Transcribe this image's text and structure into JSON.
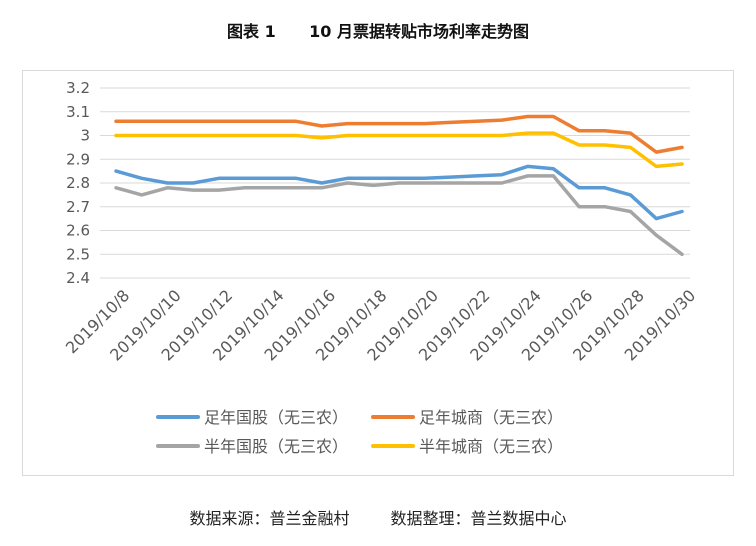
{
  "title": "图表 1      10 月票据转贴市场利率走势图",
  "source_left": "数据来源：普兰金融村",
  "source_right": "数据整理：普兰数据中心",
  "colors": {
    "series": [
      "#5b9bd5",
      "#ed7d31",
      "#a5a5a5",
      "#ffc000"
    ],
    "grid": "#d9d9d9",
    "axis_text": "#595959"
  },
  "chart_data": {
    "type": "line",
    "title": "",
    "xlabel": "",
    "ylabel": "",
    "ylim": [
      2.4,
      3.2
    ],
    "yticks": [
      2.4,
      2.5,
      2.6,
      2.7,
      2.8,
      2.9,
      3,
      3.1,
      3.2
    ],
    "grid": "horizontal",
    "legend_position": "bottom",
    "x_tick_labels": [
      "2019/10/8",
      "2019/10/10",
      "2019/10/12",
      "2019/10/14",
      "2019/10/16",
      "2019/10/18",
      "2019/10/20",
      "2019/10/22",
      "2019/10/24",
      "2019/10/26",
      "2019/10/28",
      "2019/10/30"
    ],
    "x": [
      "2019/10/8",
      "2019/10/9",
      "2019/10/10",
      "2019/10/11",
      "2019/10/12",
      "2019/10/13",
      "2019/10/14",
      "2019/10/15",
      "2019/10/16",
      "2019/10/17",
      "2019/10/18",
      "2019/10/19",
      "2019/10/20",
      "2019/10/21",
      "2019/10/22",
      "2019/10/23",
      "2019/10/24",
      "2019/10/25",
      "2019/10/26",
      "2019/10/27",
      "2019/10/28",
      "2019/10/29",
      "2019/10/30"
    ],
    "series": [
      {
        "name": "足年国股（无三农）",
        "values": [
          2.85,
          2.82,
          2.8,
          2.8,
          2.82,
          2.82,
          2.82,
          2.82,
          2.8,
          2.82,
          2.82,
          2.82,
          2.82,
          2.825,
          2.83,
          2.835,
          2.87,
          2.86,
          2.78,
          2.78,
          2.75,
          2.65,
          2.68
        ]
      },
      {
        "name": "足年城商（无三农）",
        "values": [
          3.06,
          3.06,
          3.06,
          3.06,
          3.06,
          3.06,
          3.06,
          3.06,
          3.04,
          3.05,
          3.05,
          3.05,
          3.05,
          3.055,
          3.06,
          3.065,
          3.08,
          3.08,
          3.02,
          3.02,
          3.01,
          2.93,
          2.95
        ]
      },
      {
        "name": "半年国股（无三农）",
        "values": [
          2.78,
          2.75,
          2.78,
          2.77,
          2.77,
          2.78,
          2.78,
          2.78,
          2.78,
          2.8,
          2.79,
          2.8,
          2.8,
          2.8,
          2.8,
          2.8,
          2.83,
          2.83,
          2.7,
          2.7,
          2.68,
          2.58,
          2.5
        ]
      },
      {
        "name": "半年城商（无三农）",
        "values": [
          3.0,
          3.0,
          3.0,
          3.0,
          3.0,
          3.0,
          3.0,
          3.0,
          2.99,
          3.0,
          3.0,
          3.0,
          3.0,
          3.0,
          3.0,
          3.0,
          3.01,
          3.01,
          2.96,
          2.96,
          2.95,
          2.87,
          2.88
        ]
      }
    ]
  }
}
